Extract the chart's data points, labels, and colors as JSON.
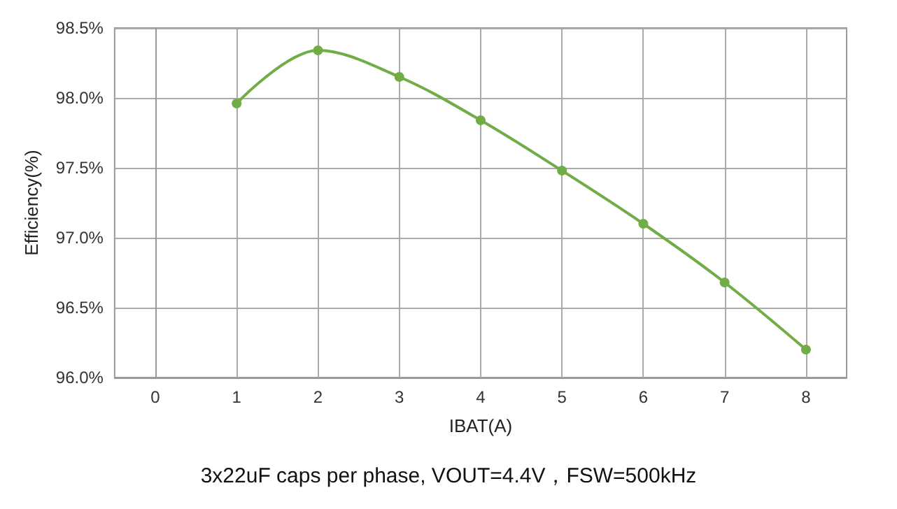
{
  "chart_data": {
    "type": "line",
    "xlabel": "IBAT(A)",
    "ylabel": "Efficiency(%)",
    "x": [
      1,
      2,
      3,
      4,
      5,
      6,
      7,
      8
    ],
    "series": [
      {
        "color": "#70ad47",
        "values": [
          97.96,
          98.34,
          98.15,
          97.84,
          97.48,
          97.1,
          96.68,
          96.2
        ]
      }
    ],
    "xlim": [
      -0.5,
      8.5
    ],
    "xticks": [
      0,
      1,
      2,
      3,
      4,
      5,
      6,
      7,
      8
    ],
    "ylim": [
      96.0,
      98.5
    ],
    "yticks": [
      {
        "value": 96.0,
        "label": "96.0%"
      },
      {
        "value": 96.5,
        "label": "96.5%"
      },
      {
        "value": 97.0,
        "label": "97.0%"
      },
      {
        "value": 97.5,
        "label": "97.5%"
      },
      {
        "value": 98.0,
        "label": "98.0%"
      },
      {
        "value": 98.5,
        "label": "98.5%"
      }
    ],
    "grid": true,
    "marker": "circle",
    "line_style": "solid",
    "annotations": [
      "3x22uF caps per phase, VOUT=4.4V，FSW=500kHz"
    ]
  }
}
